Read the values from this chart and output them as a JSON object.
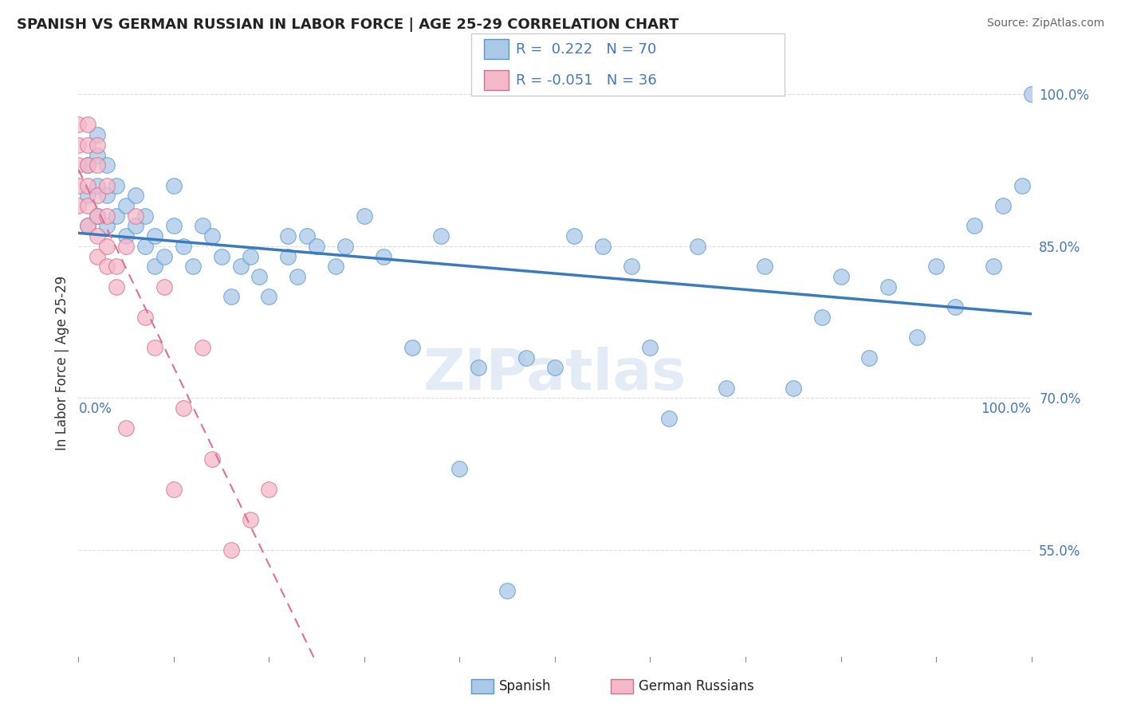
{
  "title": "SPANISH VS GERMAN RUSSIAN IN LABOR FORCE | AGE 25-29 CORRELATION CHART",
  "source": "Source: ZipAtlas.com",
  "ylabel": "In Labor Force | Age 25-29",
  "xlim": [
    0,
    1.0
  ],
  "ylim": [
    0.44,
    1.03
  ],
  "yticks": [
    0.55,
    0.7,
    0.85,
    1.0
  ],
  "ytick_labels": [
    "55.0%",
    "70.0%",
    "85.0%",
    "100.0%"
  ],
  "r_spanish": 0.222,
  "n_spanish": 70,
  "r_german_russian": -0.051,
  "n_german_russian": 36,
  "spanish_color": "#aac8e8",
  "spanish_edge": "#5599cc",
  "german_russian_color": "#f5b8c8",
  "german_russian_edge": "#d07090",
  "trend_spanish_color": "#3a7bbf",
  "trend_german_russian_color": "#e07090",
  "watermark": "ZIPatlas",
  "legend_box_color": "#cccccc",
  "title_color": "#222222",
  "source_color": "#666666",
  "tick_label_color": "#4477bb",
  "grid_color": "#dddddd",
  "spanish_x": [
    0.01,
    0.01,
    0.01,
    0.02,
    0.02,
    0.02,
    0.02,
    0.03,
    0.03,
    0.03,
    0.04,
    0.04,
    0.05,
    0.05,
    0.06,
    0.06,
    0.07,
    0.07,
    0.08,
    0.08,
    0.09,
    0.1,
    0.1,
    0.11,
    0.12,
    0.13,
    0.14,
    0.15,
    0.16,
    0.17,
    0.18,
    0.19,
    0.2,
    0.22,
    0.22,
    0.23,
    0.24,
    0.25,
    0.27,
    0.28,
    0.3,
    0.32,
    0.35,
    0.38,
    0.4,
    0.42,
    0.45,
    0.47,
    0.5,
    0.52,
    0.55,
    0.58,
    0.6,
    0.62,
    0.65,
    0.68,
    0.72,
    0.75,
    0.78,
    0.8,
    0.83,
    0.85,
    0.88,
    0.9,
    0.92,
    0.94,
    0.96,
    0.97,
    0.99,
    1.0
  ],
  "spanish_y": [
    0.93,
    0.9,
    0.87,
    0.96,
    0.94,
    0.91,
    0.88,
    0.93,
    0.9,
    0.87,
    0.91,
    0.88,
    0.89,
    0.86,
    0.9,
    0.87,
    0.85,
    0.88,
    0.83,
    0.86,
    0.84,
    0.91,
    0.87,
    0.85,
    0.83,
    0.87,
    0.86,
    0.84,
    0.8,
    0.83,
    0.84,
    0.82,
    0.8,
    0.86,
    0.84,
    0.82,
    0.86,
    0.85,
    0.83,
    0.85,
    0.88,
    0.84,
    0.75,
    0.86,
    0.63,
    0.73,
    0.51,
    0.74,
    0.73,
    0.86,
    0.85,
    0.83,
    0.75,
    0.68,
    0.85,
    0.71,
    0.83,
    0.71,
    0.78,
    0.82,
    0.74,
    0.81,
    0.76,
    0.83,
    0.79,
    0.87,
    0.83,
    0.89,
    0.91,
    1.0
  ],
  "german_russian_x": [
    0.0,
    0.0,
    0.0,
    0.0,
    0.0,
    0.01,
    0.01,
    0.01,
    0.01,
    0.01,
    0.01,
    0.02,
    0.02,
    0.02,
    0.02,
    0.02,
    0.02,
    0.03,
    0.03,
    0.03,
    0.03,
    0.04,
    0.04,
    0.05,
    0.05,
    0.06,
    0.07,
    0.08,
    0.09,
    0.1,
    0.11,
    0.13,
    0.14,
    0.16,
    0.18,
    0.2
  ],
  "german_russian_y": [
    0.97,
    0.95,
    0.93,
    0.91,
    0.89,
    0.97,
    0.95,
    0.93,
    0.91,
    0.89,
    0.87,
    0.95,
    0.93,
    0.9,
    0.88,
    0.86,
    0.84,
    0.91,
    0.88,
    0.85,
    0.83,
    0.83,
    0.81,
    0.85,
    0.67,
    0.88,
    0.78,
    0.75,
    0.81,
    0.61,
    0.69,
    0.75,
    0.64,
    0.55,
    0.58,
    0.61
  ],
  "trend_sp_x0": 0.0,
  "trend_sp_x1": 1.0,
  "trend_gr_x0": 0.0,
  "trend_gr_x1": 1.0
}
